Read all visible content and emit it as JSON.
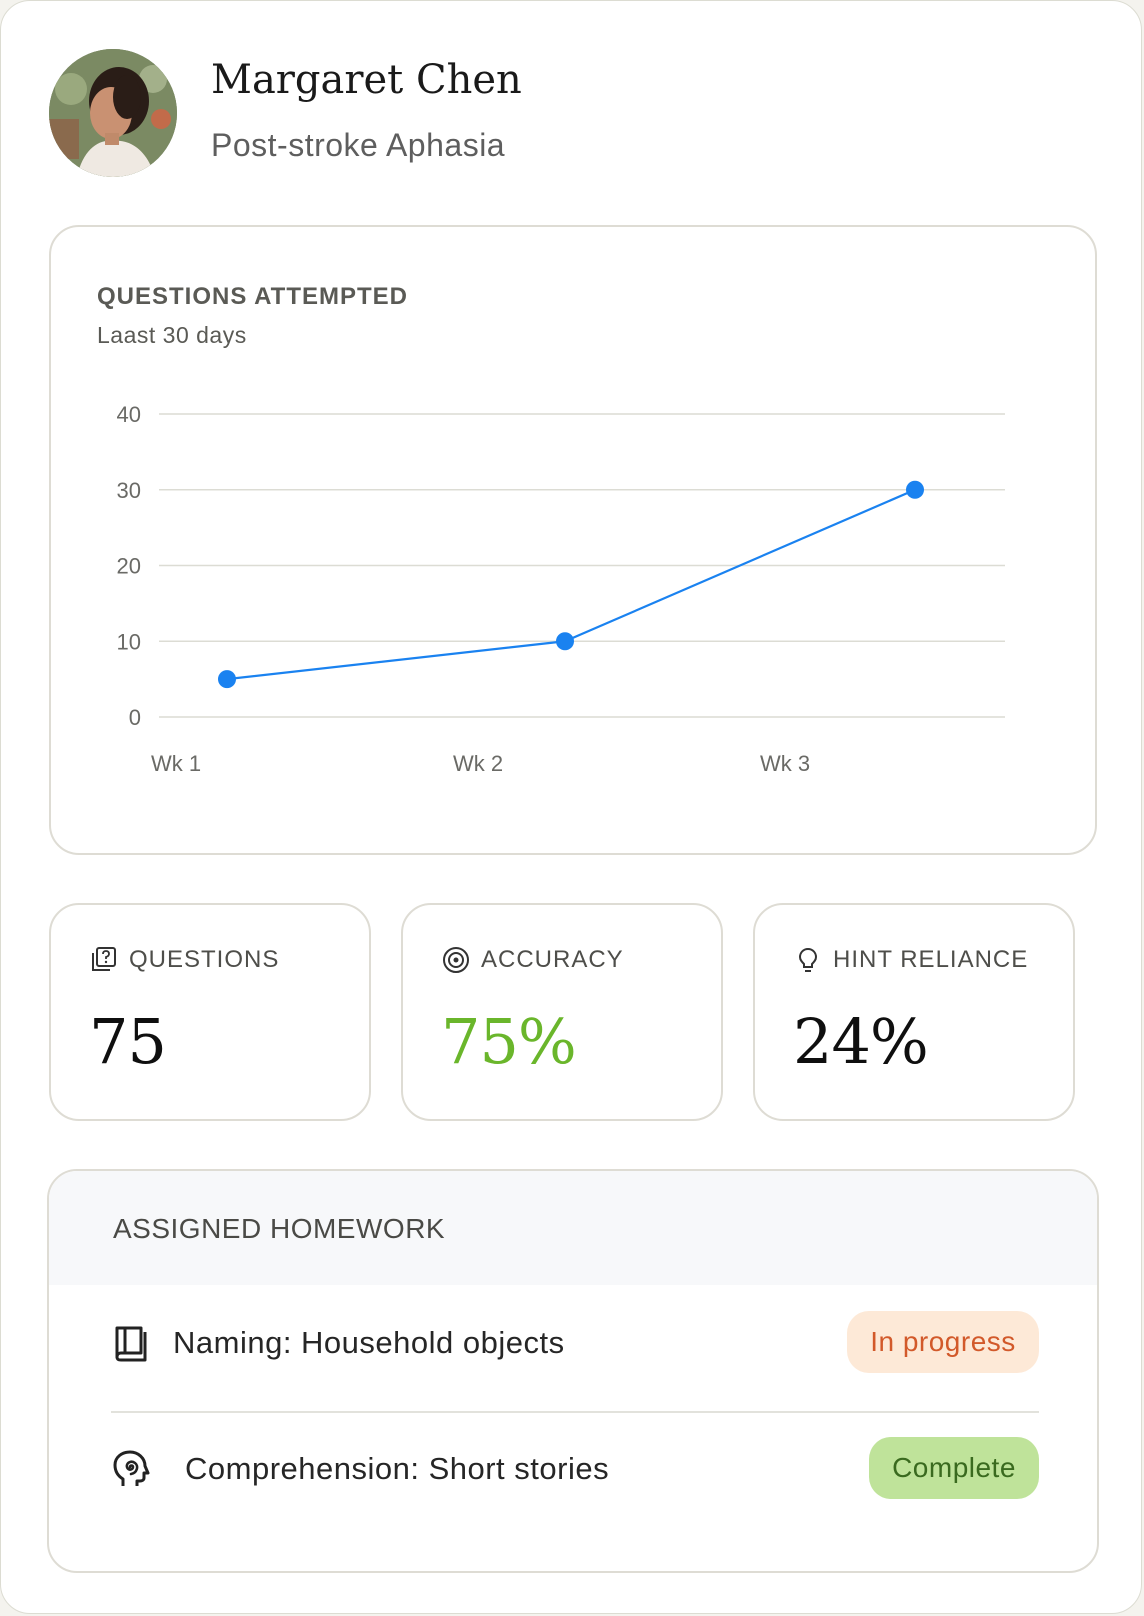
{
  "profile": {
    "name": "Margaret Chen",
    "condition": "Post-stroke Aphasia",
    "avatar_icon": "person-portrait"
  },
  "chart_card": {
    "title": "QUESTIONS ATTEMPTED",
    "subtitle": "Laast 30 days"
  },
  "chart_data": {
    "type": "line",
    "categories": [
      "Wk 1",
      "Wk 2",
      "Wk 3"
    ],
    "series": [
      {
        "values": [
          5,
          10,
          30
        ],
        "color": "#1a82f0"
      }
    ],
    "yticks": [
      "0",
      "10",
      "20",
      "30",
      "40"
    ],
    "ylim": [
      0,
      40
    ],
    "grid": true
  },
  "stats": [
    {
      "label": "QUESTIONS",
      "value": "75",
      "icon": "question-card-icon",
      "value_color": "#0f0f0f"
    },
    {
      "label": "ACCURACY",
      "value": "75%",
      "icon": "target-icon",
      "value_color": "#6ab62b"
    },
    {
      "label": "HINT RELIANCE",
      "value": "24%",
      "icon": "lightbulb-icon",
      "value_color": "#0f0f0f"
    }
  ],
  "homework": {
    "title": "ASSIGNED HOMEWORK",
    "items": [
      {
        "label": "Naming: Household objects",
        "status": "In progress",
        "icon": "book-icon",
        "status_bg": "#fde9d7",
        "status_color": "#d2592a"
      },
      {
        "label": "Comprehension: Short stories",
        "status": "Complete",
        "icon": "head-spiral-icon",
        "status_bg": "#bfe39a",
        "status_color": "#3a6a1f"
      }
    ]
  }
}
